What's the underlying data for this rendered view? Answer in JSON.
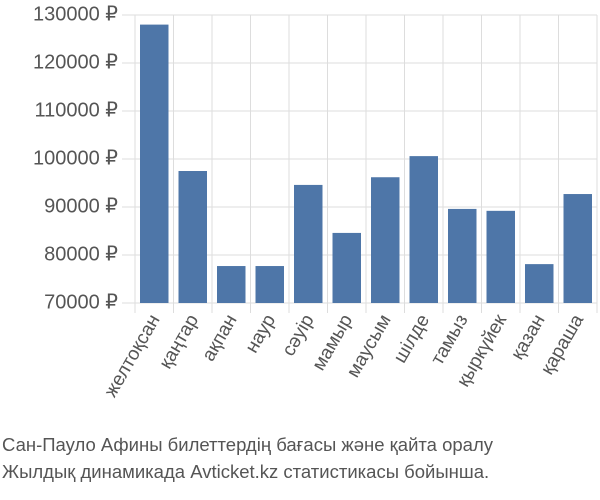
{
  "chart_data": {
    "type": "bar",
    "title": "Сан-Пауло Афины билеттердің бағасы және қайта оралу",
    "subtitle": "Жылдық динамикада Avticket.kz статистикасы бойынша.",
    "categories": [
      "желтоқсан",
      "қаңтар",
      "ақпан",
      "наур",
      "сәуір",
      "мамыр",
      "маусым",
      "шілде",
      "тамыз",
      "қыркүйек",
      "қазан",
      "қараша"
    ],
    "values": [
      128000,
      97500,
      77700,
      77700,
      94600,
      84600,
      96200,
      100600,
      89600,
      89200,
      78100,
      92700
    ],
    "color": "#4e76a8",
    "ylim": [
      70000,
      130000
    ],
    "yticks": [
      {
        "value": 70000,
        "label": "70000 ₽"
      },
      {
        "value": 80000,
        "label": "80000 ₽"
      },
      {
        "value": 90000,
        "label": "90000 ₽"
      },
      {
        "value": 100000,
        "label": "100000 ₽"
      },
      {
        "value": 110000,
        "label": "110000 ₽"
      },
      {
        "value": 120000,
        "label": "120000 ₽"
      },
      {
        "value": 130000,
        "label": "130000 ₽"
      }
    ],
    "grid": true
  }
}
